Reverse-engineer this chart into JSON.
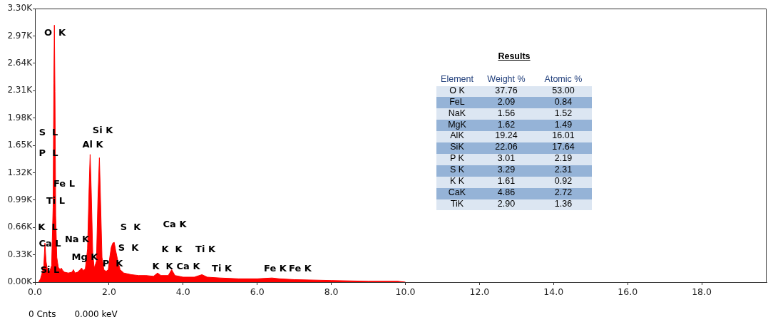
{
  "chart_data": {
    "type": "area",
    "title": "Results",
    "x": [
      0.1,
      0.15,
      0.2,
      0.24,
      0.27,
      0.3,
      0.34,
      0.4,
      0.45,
      0.49,
      0.51,
      0.525,
      0.54,
      0.56,
      0.59,
      0.63,
      0.68,
      0.71,
      0.75,
      0.8,
      0.9,
      1.0,
      1.04,
      1.08,
      1.15,
      1.22,
      1.26,
      1.3,
      1.36,
      1.42,
      1.46,
      1.49,
      1.52,
      1.56,
      1.6,
      1.66,
      1.7,
      1.74,
      1.77,
      1.81,
      1.86,
      1.92,
      1.98,
      2.02,
      2.06,
      2.1,
      2.14,
      2.18,
      2.24,
      2.3,
      2.4,
      2.6,
      2.8,
      3.0,
      3.2,
      3.31,
      3.4,
      3.6,
      3.69,
      3.78,
      4.0,
      4.3,
      4.51,
      4.65,
      5.0,
      5.5,
      6.0,
      6.4,
      6.6,
      7.0,
      8.0,
      9.0,
      9.8,
      10.0
    ],
    "series": [
      {
        "color": "#ff0000",
        "values": [
          0,
          40,
          120,
          200,
          470,
          250,
          140,
          130,
          200,
          900,
          2400,
          3100,
          2300,
          800,
          300,
          180,
          150,
          170,
          140,
          120,
          110,
          120,
          150,
          110,
          120,
          150,
          170,
          140,
          160,
          400,
          1100,
          1540,
          1100,
          350,
          170,
          250,
          1000,
          1500,
          1000,
          300,
          150,
          130,
          150,
          300,
          420,
          470,
          480,
          380,
          250,
          150,
          110,
          90,
          80,
          80,
          70,
          110,
          80,
          80,
          150,
          80,
          60,
          60,
          90,
          60,
          50,
          40,
          40,
          50,
          40,
          30,
          20,
          10,
          10,
          0
        ]
      }
    ],
    "xlim": [
      0,
      19.75
    ],
    "xticks": [
      {
        "value": 0,
        "label": "0.0"
      },
      {
        "value": 2,
        "label": "2.0"
      },
      {
        "value": 4,
        "label": "4.0"
      },
      {
        "value": 6,
        "label": "6.0"
      },
      {
        "value": 8,
        "label": "8.0"
      },
      {
        "value": 10,
        "label": "10.0"
      },
      {
        "value": 12,
        "label": "12.0"
      },
      {
        "value": 14,
        "label": "14.0"
      },
      {
        "value": 16,
        "label": "16.0"
      },
      {
        "value": 18,
        "label": "18.0"
      }
    ],
    "ylim": [
      0,
      3300
    ],
    "yticks": [
      {
        "value": 0,
        "label": "0.00K"
      },
      {
        "value": 330,
        "label": "0.33K"
      },
      {
        "value": 660,
        "label": "0.66K"
      },
      {
        "value": 990,
        "label": "0.99K"
      },
      {
        "value": 1320,
        "label": "1.32K"
      },
      {
        "value": 1650,
        "label": "1.65K"
      },
      {
        "value": 1980,
        "label": "1.98K"
      },
      {
        "value": 2310,
        "label": "2.31K"
      },
      {
        "value": 2640,
        "label": "2.64K"
      },
      {
        "value": 2970,
        "label": "2.97K"
      },
      {
        "value": 3300,
        "label": "3.30K"
      }
    ],
    "annotations": [
      "O  K",
      "S  L",
      "P  L",
      "Fe L",
      "Ti L",
      "K  L",
      "Ca L",
      "Si L",
      "Na K",
      "Mg K",
      "Al K",
      "Si K",
      "P  K",
      "S  K",
      "S  K",
      "Ca K",
      "K  K",
      "Ti K",
      "K  K",
      "Ca K",
      "Ti K",
      "Fe K",
      "Fe K",
      "Element",
      "Weight %",
      "Atomic %",
      "O K",
      "37.76",
      "53.00",
      "FeL",
      "2.09",
      "0.84",
      "NaK",
      "1.56",
      "1.52",
      "MgK",
      "1.62",
      "1.49",
      "AlK",
      "19.24",
      "16.01",
      "SiK",
      "22.06",
      "17.64",
      "P K",
      "3.01",
      "2.19",
      "S K",
      "3.29",
      "2.31",
      "K K",
      "1.61",
      "0.92",
      "CaK",
      "4.86",
      "2.72",
      "TiK",
      "2.90",
      "1.36",
      "0 Cnts",
      "0.000 keV"
    ]
  }
}
